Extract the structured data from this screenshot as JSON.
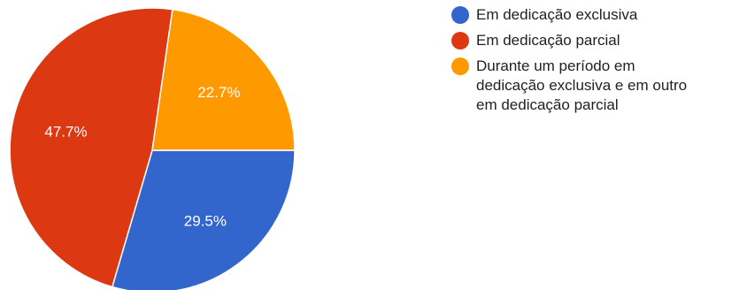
{
  "chart_data": {
    "type": "pie",
    "title": "",
    "slices": [
      {
        "label": "Em dedicação exclusiva",
        "value": 29.5,
        "value_label": "29.5%",
        "color": "#3366CC"
      },
      {
        "label": "Em dedicação parcial",
        "value": 47.7,
        "value_label": "47.7%",
        "color": "#DC3912"
      },
      {
        "label": "Durante um período em\ndedicação exclusiva e em outro\nem dedicação parcial",
        "value": 22.7,
        "value_label": "22.7%",
        "color": "#FF9900"
      }
    ],
    "legend_position": "right"
  }
}
